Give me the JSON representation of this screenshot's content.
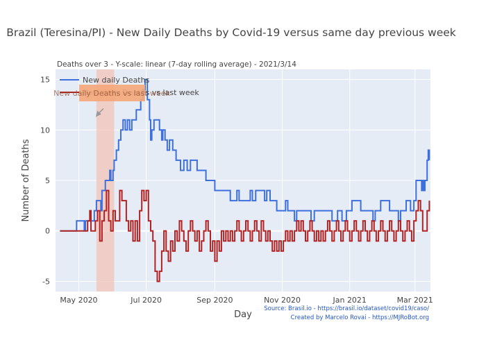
{
  "chart_data": {
    "type": "line",
    "title": "Brazil (Teresina/PI) - New Daily Deaths by Covid-19 versus same day previous week",
    "subtitle": "Deaths over 3 - Y-scale: linear (7-day rolling average) - 2021/3/14",
    "xlabel": "Day",
    "ylabel": "Number of Deaths",
    "x_ticks": [
      "May 2020",
      "Jul 2020",
      "Sep 2020",
      "Nov 2020",
      "Jan 2021",
      "Mar 2021"
    ],
    "x_tick_dates": [
      "2020-05-01",
      "2020-07-01",
      "2020-09-01",
      "2020-11-01",
      "2021-01-01",
      "2021-03-01"
    ],
    "y_ticks": [
      -5,
      0,
      5,
      10,
      15
    ],
    "xlim": [
      "2020-04-10",
      "2021-03-15"
    ],
    "ylim": [
      -6,
      16
    ],
    "grid": true,
    "legend_position": "top-left",
    "highlight_band": {
      "start": "2020-05-17",
      "end": "2020-06-02",
      "color": "#f2c4b8"
    },
    "annotation": {
      "text": "New daily Deaths vs last week",
      "x": "2020-05-17",
      "y": 11.5,
      "box_color": "#f4a77a"
    },
    "series": [
      {
        "name": "New daily Deaths",
        "color": "#3d6fdd",
        "points": [
          [
            "2020-04-14",
            0
          ],
          [
            "2020-04-28",
            0
          ],
          [
            "2020-04-29",
            1
          ],
          [
            "2020-05-05",
            1
          ],
          [
            "2020-05-06",
            0
          ],
          [
            "2020-05-07",
            1
          ],
          [
            "2020-05-10",
            1
          ],
          [
            "2020-05-11",
            2
          ],
          [
            "2020-05-12",
            1
          ],
          [
            "2020-05-14",
            1
          ],
          [
            "2020-05-15",
            2
          ],
          [
            "2020-05-17",
            3
          ],
          [
            "2020-05-20",
            3
          ],
          [
            "2020-05-21",
            2
          ],
          [
            "2020-05-22",
            4
          ],
          [
            "2020-05-24",
            4
          ],
          [
            "2020-05-25",
            5
          ],
          [
            "2020-05-28",
            5
          ],
          [
            "2020-05-29",
            6
          ],
          [
            "2020-05-30",
            5
          ],
          [
            "2020-06-01",
            6
          ],
          [
            "2020-06-02",
            7
          ],
          [
            "2020-06-04",
            8
          ],
          [
            "2020-06-06",
            9
          ],
          [
            "2020-06-08",
            10
          ],
          [
            "2020-06-10",
            11
          ],
          [
            "2020-06-12",
            10
          ],
          [
            "2020-06-14",
            11
          ],
          [
            "2020-06-16",
            10
          ],
          [
            "2020-06-18",
            11
          ],
          [
            "2020-06-21",
            11
          ],
          [
            "2020-06-22",
            12
          ],
          [
            "2020-06-24",
            12
          ],
          [
            "2020-06-26",
            13
          ],
          [
            "2020-06-28",
            14
          ],
          [
            "2020-06-30",
            15
          ],
          [
            "2020-07-02",
            13
          ],
          [
            "2020-07-04",
            11
          ],
          [
            "2020-07-05",
            9
          ],
          [
            "2020-07-06",
            10
          ],
          [
            "2020-07-08",
            11
          ],
          [
            "2020-07-12",
            11
          ],
          [
            "2020-07-13",
            10
          ],
          [
            "2020-07-15",
            9
          ],
          [
            "2020-07-16",
            10
          ],
          [
            "2020-07-18",
            9
          ],
          [
            "2020-07-20",
            8
          ],
          [
            "2020-07-22",
            9
          ],
          [
            "2020-07-25",
            8
          ],
          [
            "2020-07-28",
            7
          ],
          [
            "2020-07-31",
            7
          ],
          [
            "2020-08-01",
            6
          ],
          [
            "2020-08-04",
            7
          ],
          [
            "2020-08-07",
            6
          ],
          [
            "2020-08-10",
            7
          ],
          [
            "2020-08-14",
            7
          ],
          [
            "2020-08-16",
            6
          ],
          [
            "2020-08-22",
            6
          ],
          [
            "2020-08-24",
            5
          ],
          [
            "2020-08-31",
            5
          ],
          [
            "2020-09-01",
            4
          ],
          [
            "2020-09-14",
            4
          ],
          [
            "2020-09-15",
            3
          ],
          [
            "2020-09-20",
            3
          ],
          [
            "2020-09-21",
            4
          ],
          [
            "2020-09-23",
            3
          ],
          [
            "2020-10-01",
            3
          ],
          [
            "2020-10-03",
            4
          ],
          [
            "2020-10-05",
            3
          ],
          [
            "2020-10-08",
            4
          ],
          [
            "2020-10-14",
            4
          ],
          [
            "2020-10-16",
            3
          ],
          [
            "2020-10-18",
            4
          ],
          [
            "2020-10-21",
            3
          ],
          [
            "2020-10-24",
            3
          ],
          [
            "2020-10-27",
            2
          ],
          [
            "2020-11-03",
            2
          ],
          [
            "2020-11-04",
            3
          ],
          [
            "2020-11-06",
            2
          ],
          [
            "2020-11-10",
            2
          ],
          [
            "2020-11-12",
            1
          ],
          [
            "2020-11-14",
            2
          ],
          [
            "2020-11-20",
            2
          ],
          [
            "2020-11-24",
            2
          ],
          [
            "2020-11-27",
            1
          ],
          [
            "2020-11-30",
            2
          ],
          [
            "2020-12-14",
            2
          ],
          [
            "2020-12-16",
            1
          ],
          [
            "2020-12-19",
            1
          ],
          [
            "2020-12-21",
            2
          ],
          [
            "2020-12-25",
            1
          ],
          [
            "2020-12-29",
            2
          ],
          [
            "2021-01-02",
            2
          ],
          [
            "2021-01-03",
            3
          ],
          [
            "2021-01-10",
            3
          ],
          [
            "2021-01-11",
            2
          ],
          [
            "2021-01-20",
            2
          ],
          [
            "2021-01-22",
            1
          ],
          [
            "2021-01-24",
            2
          ],
          [
            "2021-01-28",
            2
          ],
          [
            "2021-01-29",
            3
          ],
          [
            "2021-02-05",
            3
          ],
          [
            "2021-02-06",
            2
          ],
          [
            "2021-02-12",
            2
          ],
          [
            "2021-02-14",
            1
          ],
          [
            "2021-02-16",
            2
          ],
          [
            "2021-02-20",
            2
          ],
          [
            "2021-02-21",
            3
          ],
          [
            "2021-02-24",
            3
          ],
          [
            "2021-02-25",
            2
          ],
          [
            "2021-02-28",
            3
          ],
          [
            "2021-03-02",
            5
          ],
          [
            "2021-03-06",
            5
          ],
          [
            "2021-03-07",
            4
          ],
          [
            "2021-03-08",
            5
          ],
          [
            "2021-03-09",
            4
          ],
          [
            "2021-03-10",
            5
          ],
          [
            "2021-03-12",
            7
          ],
          [
            "2021-03-13",
            8
          ],
          [
            "2021-03-14",
            7
          ]
        ]
      },
      {
        "name": "New daily Deaths vs last week",
        "color": "#b22222",
        "points": [
          [
            "2020-04-14",
            0
          ],
          [
            "2020-05-08",
            0
          ],
          [
            "2020-05-09",
            1
          ],
          [
            "2020-05-11",
            2
          ],
          [
            "2020-05-12",
            0
          ],
          [
            "2020-05-14",
            0
          ],
          [
            "2020-05-16",
            1
          ],
          [
            "2020-05-18",
            2
          ],
          [
            "2020-05-20",
            -1
          ],
          [
            "2020-05-22",
            1
          ],
          [
            "2020-05-24",
            2
          ],
          [
            "2020-05-26",
            4
          ],
          [
            "2020-05-28",
            1
          ],
          [
            "2020-05-30",
            0
          ],
          [
            "2020-06-01",
            2
          ],
          [
            "2020-06-03",
            1
          ],
          [
            "2020-06-05",
            1
          ],
          [
            "2020-06-07",
            4
          ],
          [
            "2020-06-09",
            3
          ],
          [
            "2020-06-11",
            3
          ],
          [
            "2020-06-13",
            1
          ],
          [
            "2020-06-15",
            0
          ],
          [
            "2020-06-17",
            1
          ],
          [
            "2020-06-19",
            -1
          ],
          [
            "2020-06-21",
            1
          ],
          [
            "2020-06-23",
            -1
          ],
          [
            "2020-06-25",
            2
          ],
          [
            "2020-06-27",
            4
          ],
          [
            "2020-06-29",
            3
          ],
          [
            "2020-07-01",
            4
          ],
          [
            "2020-07-03",
            1
          ],
          [
            "2020-07-05",
            0
          ],
          [
            "2020-07-07",
            -1
          ],
          [
            "2020-07-09",
            -4
          ],
          [
            "2020-07-11",
            -5
          ],
          [
            "2020-07-13",
            -4
          ],
          [
            "2020-07-15",
            -2
          ],
          [
            "2020-07-17",
            0
          ],
          [
            "2020-07-19",
            -2
          ],
          [
            "2020-07-21",
            -3
          ],
          [
            "2020-07-23",
            -1
          ],
          [
            "2020-07-25",
            -2
          ],
          [
            "2020-07-27",
            0
          ],
          [
            "2020-07-29",
            -1
          ],
          [
            "2020-07-31",
            1
          ],
          [
            "2020-08-02",
            0
          ],
          [
            "2020-08-04",
            -1
          ],
          [
            "2020-08-06",
            -2
          ],
          [
            "2020-08-08",
            0
          ],
          [
            "2020-08-10",
            1
          ],
          [
            "2020-08-12",
            0
          ],
          [
            "2020-08-14",
            -1
          ],
          [
            "2020-08-16",
            0
          ],
          [
            "2020-08-18",
            -2
          ],
          [
            "2020-08-20",
            -1
          ],
          [
            "2020-08-22",
            0
          ],
          [
            "2020-08-24",
            1
          ],
          [
            "2020-08-26",
            0
          ],
          [
            "2020-08-28",
            -2
          ],
          [
            "2020-08-30",
            -1
          ],
          [
            "2020-09-01",
            -3
          ],
          [
            "2020-09-03",
            -1
          ],
          [
            "2020-09-05",
            -2
          ],
          [
            "2020-09-07",
            0
          ],
          [
            "2020-09-09",
            -1
          ],
          [
            "2020-09-11",
            0
          ],
          [
            "2020-09-13",
            -1
          ],
          [
            "2020-09-15",
            0
          ],
          [
            "2020-09-17",
            -1
          ],
          [
            "2020-09-19",
            0
          ],
          [
            "2020-09-21",
            1
          ],
          [
            "2020-09-23",
            0
          ],
          [
            "2020-09-25",
            -1
          ],
          [
            "2020-09-27",
            0
          ],
          [
            "2020-09-29",
            1
          ],
          [
            "2020-10-01",
            0
          ],
          [
            "2020-10-03",
            -1
          ],
          [
            "2020-10-05",
            0
          ],
          [
            "2020-10-07",
            1
          ],
          [
            "2020-10-09",
            0
          ],
          [
            "2020-10-11",
            -1
          ],
          [
            "2020-10-13",
            1
          ],
          [
            "2020-10-15",
            0
          ],
          [
            "2020-10-17",
            -1
          ],
          [
            "2020-10-19",
            0
          ],
          [
            "2020-10-21",
            -1
          ],
          [
            "2020-10-23",
            -2
          ],
          [
            "2020-10-25",
            -1
          ],
          [
            "2020-10-27",
            -2
          ],
          [
            "2020-10-29",
            -1
          ],
          [
            "2020-10-31",
            -2
          ],
          [
            "2020-11-02",
            -1
          ],
          [
            "2020-11-04",
            0
          ],
          [
            "2020-11-06",
            -1
          ],
          [
            "2020-11-08",
            0
          ],
          [
            "2020-11-10",
            -1
          ],
          [
            "2020-11-12",
            0
          ],
          [
            "2020-11-14",
            1
          ],
          [
            "2020-11-16",
            0
          ],
          [
            "2020-11-18",
            1
          ],
          [
            "2020-11-20",
            0
          ],
          [
            "2020-11-22",
            -1
          ],
          [
            "2020-11-24",
            0
          ],
          [
            "2020-11-26",
            1
          ],
          [
            "2020-11-28",
            0
          ],
          [
            "2020-11-30",
            -1
          ],
          [
            "2020-12-02",
            0
          ],
          [
            "2020-12-04",
            -1
          ],
          [
            "2020-12-06",
            0
          ],
          [
            "2020-12-08",
            -1
          ],
          [
            "2020-12-10",
            0
          ],
          [
            "2020-12-12",
            1
          ],
          [
            "2020-12-14",
            0
          ],
          [
            "2020-12-16",
            -1
          ],
          [
            "2020-12-18",
            0
          ],
          [
            "2020-12-20",
            1
          ],
          [
            "2020-12-22",
            0
          ],
          [
            "2020-12-24",
            -1
          ],
          [
            "2020-12-26",
            0
          ],
          [
            "2020-12-28",
            1
          ],
          [
            "2020-12-30",
            0
          ],
          [
            "2021-01-01",
            -1
          ],
          [
            "2021-01-03",
            0
          ],
          [
            "2021-01-05",
            1
          ],
          [
            "2021-01-07",
            0
          ],
          [
            "2021-01-09",
            -1
          ],
          [
            "2021-01-11",
            0
          ],
          [
            "2021-01-13",
            1
          ],
          [
            "2021-01-15",
            0
          ],
          [
            "2021-01-17",
            -1
          ],
          [
            "2021-01-19",
            0
          ],
          [
            "2021-01-21",
            1
          ],
          [
            "2021-01-23",
            0
          ],
          [
            "2021-01-25",
            -1
          ],
          [
            "2021-01-27",
            0
          ],
          [
            "2021-01-29",
            1
          ],
          [
            "2021-01-31",
            0
          ],
          [
            "2021-02-02",
            -1
          ],
          [
            "2021-02-04",
            0
          ],
          [
            "2021-02-06",
            1
          ],
          [
            "2021-02-08",
            0
          ],
          [
            "2021-02-10",
            -1
          ],
          [
            "2021-02-12",
            0
          ],
          [
            "2021-02-14",
            1
          ],
          [
            "2021-02-16",
            0
          ],
          [
            "2021-02-18",
            -1
          ],
          [
            "2021-02-20",
            0
          ],
          [
            "2021-02-22",
            1
          ],
          [
            "2021-02-24",
            0
          ],
          [
            "2021-02-26",
            -1
          ],
          [
            "2021-02-28",
            1
          ],
          [
            "2021-03-02",
            2
          ],
          [
            "2021-03-04",
            3
          ],
          [
            "2021-03-06",
            2
          ],
          [
            "2021-03-08",
            0
          ],
          [
            "2021-03-10",
            0
          ],
          [
            "2021-03-12",
            2
          ],
          [
            "2021-03-14",
            3
          ]
        ]
      }
    ]
  },
  "source_text": "Source: Brasil.io - https://brasil.io/dataset/covid19/caso/",
  "credit_text": "Created by Marcelo Rovai - https://MJRoBot.org"
}
